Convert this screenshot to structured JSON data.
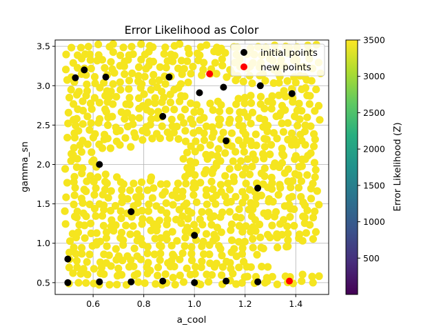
{
  "chart_data": {
    "type": "scatter",
    "title": "Error Likelihood as Color",
    "xlabel": "a_cool",
    "ylabel": "gamma_sn",
    "xlim": [
      0.45,
      1.53
    ],
    "ylim": [
      0.35,
      3.58
    ],
    "xticks": [
      "0.6",
      "0.8",
      "1.0",
      "1.2",
      "1.4"
    ],
    "yticks": [
      "0.5",
      "1.0",
      "1.5",
      "2.0",
      "2.5",
      "3.0",
      "3.5"
    ],
    "grid": true,
    "legend": {
      "placement": "top-right",
      "entries": [
        "initial points",
        "new points"
      ]
    },
    "colorbar": {
      "label": "Error Likelihood (Z)",
      "range": [
        0,
        3500
      ],
      "ticks": [
        "500",
        "1000",
        "1500",
        "2000",
        "2500",
        "3000",
        "3500"
      ],
      "colormap": "viridis"
    },
    "background_cloud": {
      "description_value": 3500,
      "color": "#f5e51f",
      "x_range": [
        0.5,
        1.5
      ],
      "y_range": [
        0.5,
        3.5
      ]
    },
    "series": [
      {
        "name": "initial points",
        "color": "#000000",
        "points": [
          [
            0.5,
            0.5
          ],
          [
            0.5,
            0.8
          ],
          [
            0.625,
            0.51
          ],
          [
            0.75,
            0.51
          ],
          [
            0.875,
            0.52
          ],
          [
            1.0,
            0.5
          ],
          [
            1.125,
            0.52
          ],
          [
            1.25,
            0.51
          ],
          [
            0.53,
            3.1
          ],
          [
            0.565,
            3.2
          ],
          [
            0.65,
            3.11
          ],
          [
            0.9,
            3.11
          ],
          [
            1.02,
            2.91
          ],
          [
            1.115,
            2.98
          ],
          [
            1.26,
            3.0
          ],
          [
            1.385,
            2.9
          ],
          [
            0.875,
            2.61
          ],
          [
            1.125,
            2.3
          ],
          [
            0.625,
            2.0
          ],
          [
            1.25,
            1.7
          ],
          [
            0.75,
            1.4
          ],
          [
            1.0,
            1.1
          ]
        ]
      },
      {
        "name": "new points",
        "color": "#ff0000",
        "points": [
          [
            1.06,
            3.15
          ],
          [
            1.375,
            0.52
          ]
        ]
      }
    ]
  }
}
